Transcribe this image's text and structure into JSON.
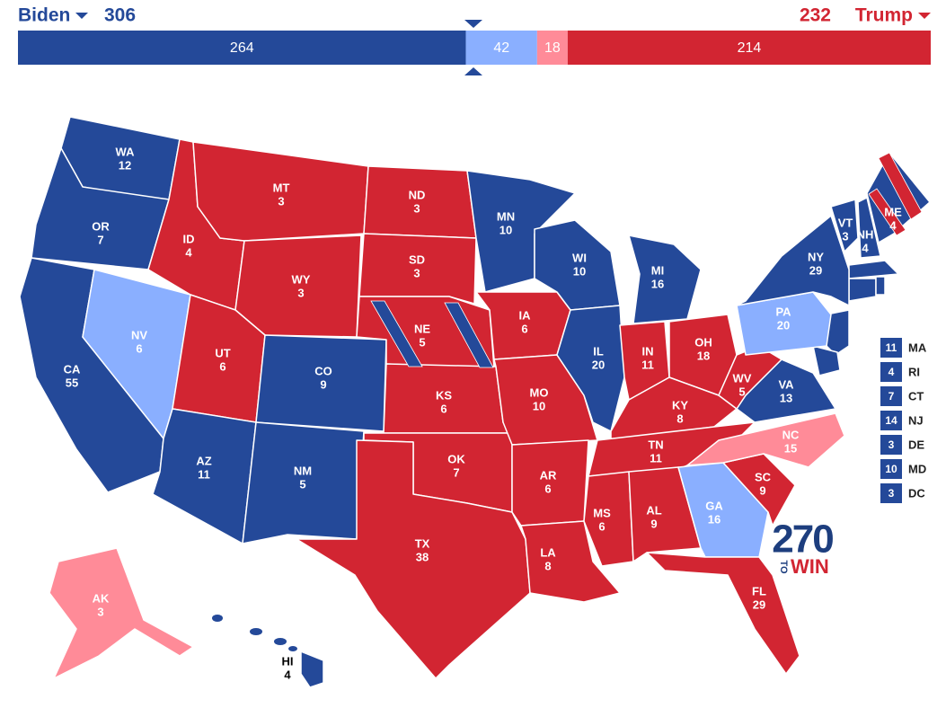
{
  "header": {
    "left": {
      "name": "Biden",
      "total": 306,
      "color": "#244999"
    },
    "right": {
      "name": "Trump",
      "total": 232,
      "color": "#d22532"
    }
  },
  "bar": {
    "total": 538,
    "segments": [
      {
        "value": 264,
        "color": "#244999"
      },
      {
        "value": 42,
        "color": "#8aafff"
      },
      {
        "value": 18,
        "color": "#ff8b98"
      },
      {
        "value": 214,
        "color": "#d22532"
      }
    ]
  },
  "ratings": {
    "safe_d": "#244999",
    "lean_d": "#8aafff",
    "lean_r": "#ff8b98",
    "safe_r": "#d22532"
  },
  "states": [
    {
      "abbr": "WA",
      "votes": 12,
      "rating": "safe_d"
    },
    {
      "abbr": "OR",
      "votes": 7,
      "rating": "safe_d"
    },
    {
      "abbr": "CA",
      "votes": 55,
      "rating": "safe_d"
    },
    {
      "abbr": "NV",
      "votes": 6,
      "rating": "lean_d"
    },
    {
      "abbr": "ID",
      "votes": 4,
      "rating": "safe_r"
    },
    {
      "abbr": "MT",
      "votes": 3,
      "rating": "safe_r"
    },
    {
      "abbr": "WY",
      "votes": 3,
      "rating": "safe_r"
    },
    {
      "abbr": "UT",
      "votes": 6,
      "rating": "safe_r"
    },
    {
      "abbr": "AZ",
      "votes": 11,
      "rating": "safe_d"
    },
    {
      "abbr": "CO",
      "votes": 9,
      "rating": "safe_d"
    },
    {
      "abbr": "NM",
      "votes": 5,
      "rating": "safe_d"
    },
    {
      "abbr": "ND",
      "votes": 3,
      "rating": "safe_r"
    },
    {
      "abbr": "SD",
      "votes": 3,
      "rating": "safe_r"
    },
    {
      "abbr": "NE",
      "votes": 5,
      "rating": "safe_r"
    },
    {
      "abbr": "KS",
      "votes": 6,
      "rating": "safe_r"
    },
    {
      "abbr": "OK",
      "votes": 7,
      "rating": "safe_r"
    },
    {
      "abbr": "TX",
      "votes": 38,
      "rating": "safe_r"
    },
    {
      "abbr": "MN",
      "votes": 10,
      "rating": "safe_d"
    },
    {
      "abbr": "IA",
      "votes": 6,
      "rating": "safe_r"
    },
    {
      "abbr": "MO",
      "votes": 10,
      "rating": "safe_r"
    },
    {
      "abbr": "AR",
      "votes": 6,
      "rating": "safe_r"
    },
    {
      "abbr": "LA",
      "votes": 8,
      "rating": "safe_r"
    },
    {
      "abbr": "WI",
      "votes": 10,
      "rating": "safe_d"
    },
    {
      "abbr": "IL",
      "votes": 20,
      "rating": "safe_d"
    },
    {
      "abbr": "MI",
      "votes": 16,
      "rating": "safe_d"
    },
    {
      "abbr": "IN",
      "votes": 11,
      "rating": "safe_r"
    },
    {
      "abbr": "OH",
      "votes": 18,
      "rating": "safe_r"
    },
    {
      "abbr": "KY",
      "votes": 8,
      "rating": "safe_r"
    },
    {
      "abbr": "TN",
      "votes": 11,
      "rating": "safe_r"
    },
    {
      "abbr": "MS",
      "votes": 6,
      "rating": "safe_r"
    },
    {
      "abbr": "AL",
      "votes": 9,
      "rating": "safe_r"
    },
    {
      "abbr": "GA",
      "votes": 16,
      "rating": "lean_d"
    },
    {
      "abbr": "FL",
      "votes": 29,
      "rating": "safe_r"
    },
    {
      "abbr": "SC",
      "votes": 9,
      "rating": "safe_r"
    },
    {
      "abbr": "NC",
      "votes": 15,
      "rating": "lean_r"
    },
    {
      "abbr": "VA",
      "votes": 13,
      "rating": "safe_d"
    },
    {
      "abbr": "WV",
      "votes": 5,
      "rating": "safe_r"
    },
    {
      "abbr": "PA",
      "votes": 20,
      "rating": "lean_d"
    },
    {
      "abbr": "NY",
      "votes": 29,
      "rating": "safe_d"
    },
    {
      "abbr": "VT",
      "votes": 3,
      "rating": "safe_d"
    },
    {
      "abbr": "NH",
      "votes": 4,
      "rating": "safe_d"
    },
    {
      "abbr": "ME",
      "votes": 4,
      "rating": "safe_d"
    },
    {
      "abbr": "AK",
      "votes": 3,
      "rating": "lean_r"
    },
    {
      "abbr": "HI",
      "votes": 4,
      "rating": "safe_d"
    }
  ],
  "small_states": [
    {
      "abbr": "MA",
      "votes": 11
    },
    {
      "abbr": "RI",
      "votes": 4
    },
    {
      "abbr": "CT",
      "votes": 7
    },
    {
      "abbr": "NJ",
      "votes": 14
    },
    {
      "abbr": "DE",
      "votes": 3
    },
    {
      "abbr": "MD",
      "votes": 10
    },
    {
      "abbr": "DC",
      "votes": 3
    }
  ],
  "logo": {
    "number": "270",
    "to": "TO",
    "win": "WIN"
  }
}
